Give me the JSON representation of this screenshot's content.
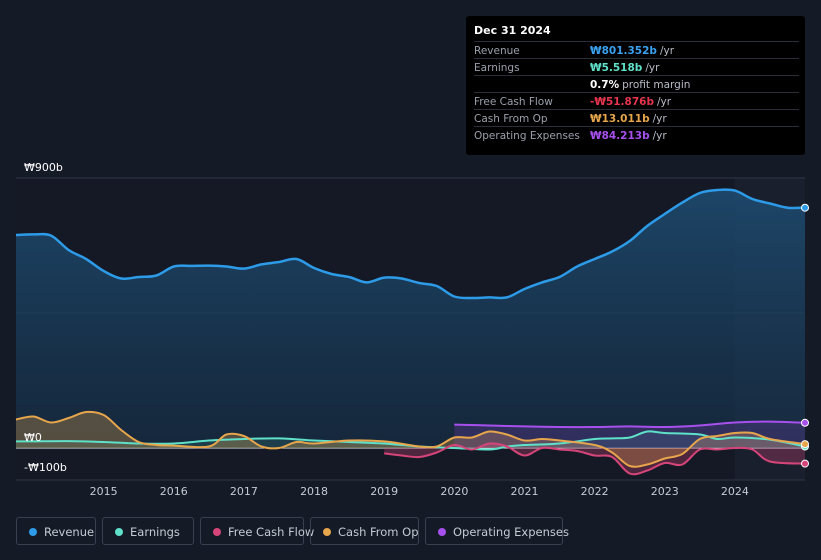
{
  "tooltip": {
    "date": "Dec 31 2024",
    "rows": [
      {
        "label": "Revenue",
        "value": "₩801.352b",
        "unit": "/yr",
        "color": "#3ba0ef"
      },
      {
        "label": "Earnings",
        "value": "₩5.518b",
        "unit": "/yr",
        "color": "#5fe0c8"
      },
      {
        "label": "",
        "value": "0.7%",
        "unit": "profit margin",
        "color": "#ffffff"
      },
      {
        "label": "Free Cash Flow",
        "value": "-₩51.876b",
        "unit": "/yr",
        "color": "#e6354d"
      },
      {
        "label": "Cash From Op",
        "value": "₩13.011b",
        "unit": "/yr",
        "color": "#e7a64c"
      },
      {
        "label": "Operating Expenses",
        "value": "₩84.213b",
        "unit": "/yr",
        "color": "#a750ee"
      }
    ]
  },
  "legend": [
    {
      "label": "Revenue",
      "color": "#2d9be8"
    },
    {
      "label": "Earnings",
      "color": "#5fe0c8"
    },
    {
      "label": "Free Cash Flow",
      "color": "#d6457a"
    },
    {
      "label": "Cash From Op",
      "color": "#e7a64c"
    },
    {
      "label": "Operating Expenses",
      "color": "#a750ee"
    }
  ],
  "chart_data": {
    "type": "line",
    "title": "",
    "xlabel": "",
    "ylabel": "",
    "ylim": [
      -100,
      900
    ],
    "ytick_labels": [
      "₩900b",
      "₩0",
      "-₩100b"
    ],
    "ytick_values": [
      900,
      0,
      -100
    ],
    "xtick_labels": [
      "2015",
      "2016",
      "2017",
      "2018",
      "2019",
      "2020",
      "2021",
      "2022",
      "2023",
      "2024"
    ],
    "xtick_values": [
      2015,
      2016,
      2017,
      2018,
      2019,
      2020,
      2021,
      2022,
      2023,
      2024
    ],
    "highlight_start": 2024.0,
    "series": [
      {
        "name": "Revenue",
        "color": "#2d9be8",
        "fill": true,
        "x": [
          2013.75,
          2014.0,
          2014.25,
          2014.5,
          2014.75,
          2015.0,
          2015.25,
          2015.5,
          2015.75,
          2016.0,
          2016.25,
          2016.5,
          2016.75,
          2017.0,
          2017.25,
          2017.5,
          2017.75,
          2018.0,
          2018.25,
          2018.5,
          2018.75,
          2019.0,
          2019.25,
          2019.5,
          2019.75,
          2020.0,
          2020.25,
          2020.5,
          2020.75,
          2021.0,
          2021.25,
          2021.5,
          2021.75,
          2022.0,
          2022.25,
          2022.5,
          2022.75,
          2023.0,
          2023.25,
          2023.5,
          2023.75,
          2024.0,
          2024.25,
          2024.5,
          2024.75,
          2025.0
        ],
        "y": [
          710,
          712,
          708,
          660,
          630,
          590,
          565,
          570,
          575,
          605,
          607,
          608,
          605,
          598,
          612,
          620,
          630,
          600,
          580,
          570,
          552,
          568,
          565,
          550,
          540,
          505,
          500,
          502,
          502,
          530,
          552,
          570,
          605,
          630,
          655,
          690,
          740,
          780,
          818,
          850,
          860,
          858,
          830,
          815,
          801,
          801
        ]
      },
      {
        "name": "Earnings",
        "color": "#5fe0c8",
        "fill": true,
        "x": [
          2013.75,
          2014.0,
          2014.5,
          2015.0,
          2015.5,
          2016.0,
          2016.5,
          2017.0,
          2017.5,
          2018.0,
          2018.5,
          2019.0,
          2019.5,
          2020.0,
          2020.5,
          2020.75,
          2021.0,
          2021.5,
          2022.0,
          2022.25,
          2022.5,
          2022.75,
          2023.0,
          2023.5,
          2023.75,
          2024.0,
          2024.5,
          2025.0
        ],
        "y": [
          22,
          22,
          23,
          20,
          15,
          15,
          25,
          30,
          32,
          25,
          20,
          15,
          5,
          0,
          -5,
          5,
          10,
          15,
          30,
          32,
          35,
          55,
          50,
          45,
          30,
          35,
          28,
          5
        ]
      },
      {
        "name": "Free Cash Flow",
        "color": "#d6457a",
        "fill": true,
        "x": [
          2019.0,
          2019.25,
          2019.5,
          2019.75,
          2020.0,
          2020.25,
          2020.5,
          2020.75,
          2021.0,
          2021.25,
          2021.5,
          2021.75,
          2022.0,
          2022.25,
          2022.5,
          2022.75,
          2023.0,
          2023.25,
          2023.5,
          2023.75,
          2024.0,
          2024.25,
          2024.5,
          2025.0
        ],
        "y": [
          -18,
          -25,
          -30,
          -15,
          10,
          -5,
          15,
          5,
          -25,
          0,
          -5,
          -10,
          -25,
          -30,
          -85,
          -75,
          -50,
          -55,
          -5,
          -5,
          0,
          -5,
          -45,
          -52
        ]
      },
      {
        "name": "Cash From Op",
        "color": "#e7a64c",
        "fill": true,
        "x": [
          2013.75,
          2014.0,
          2014.25,
          2014.5,
          2014.75,
          2015.0,
          2015.25,
          2015.5,
          2015.75,
          2016.0,
          2016.5,
          2016.75,
          2017.0,
          2017.25,
          2017.5,
          2017.75,
          2018.0,
          2018.5,
          2019.0,
          2019.5,
          2019.75,
          2020.0,
          2020.25,
          2020.5,
          2020.75,
          2021.0,
          2021.25,
          2021.5,
          2022.0,
          2022.25,
          2022.5,
          2022.75,
          2023.0,
          2023.25,
          2023.5,
          2023.75,
          2024.0,
          2024.25,
          2024.5,
          2025.0
        ],
        "y": [
          95,
          105,
          85,
          100,
          120,
          110,
          60,
          20,
          10,
          8,
          5,
          45,
          40,
          5,
          0,
          20,
          15,
          25,
          22,
          5,
          5,
          35,
          35,
          55,
          45,
          25,
          30,
          25,
          10,
          -15,
          -60,
          -55,
          -35,
          -20,
          30,
          40,
          50,
          50,
          30,
          13
        ]
      },
      {
        "name": "Operating Expenses",
        "color": "#a750ee",
        "fill": true,
        "x": [
          2020.0,
          2020.5,
          2021.0,
          2021.5,
          2022.0,
          2022.5,
          2023.0,
          2023.5,
          2024.0,
          2024.5,
          2025.0
        ],
        "y": [
          78,
          75,
          72,
          70,
          70,
          72,
          70,
          75,
          85,
          88,
          84
        ]
      }
    ]
  }
}
